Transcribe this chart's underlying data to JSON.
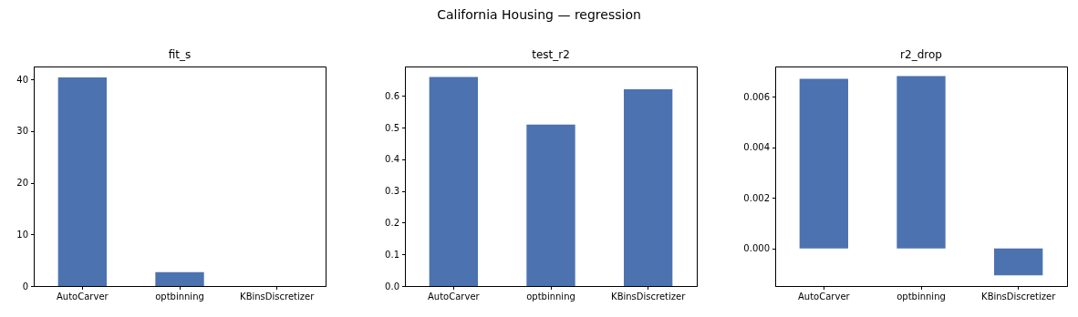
{
  "chart_data": [
    {
      "type": "bar",
      "title": "fit_s",
      "annotations": [
        "California Housing — regression"
      ],
      "categories": [
        "AutoCarver",
        "optbinning",
        "KBinsDiscretizer"
      ],
      "values": [
        40.4,
        2.7,
        0
      ],
      "color": "#4c72b0",
      "ylim": [
        0,
        42.5
      ],
      "yticks": [
        0,
        10,
        20,
        30,
        40
      ]
    },
    {
      "type": "bar",
      "title": "test_r2",
      "categories": [
        "AutoCarver",
        "optbinning",
        "KBinsDiscretizer"
      ],
      "values": [
        0.66,
        0.51,
        0.621
      ],
      "color": "#4c72b0",
      "ylim": [
        0,
        0.693
      ],
      "yticks": [
        {
          "value": 0,
          "label": "0.0"
        },
        0.1,
        0.2,
        0.3,
        0.4,
        0.5,
        0.6
      ]
    },
    {
      "type": "bar",
      "title": "r2_drop",
      "categories": [
        "AutoCarver",
        "optbinning",
        "KBinsDiscretizer"
      ],
      "values": [
        0.00671,
        0.00682,
        -0.00107
      ],
      "color": "#4c72b0",
      "ylim": [
        -0.00149,
        0.0072
      ],
      "yticks": [
        {
          "value": 0,
          "label": "0.000"
        },
        0.002,
        0.004,
        0.006
      ]
    }
  ]
}
